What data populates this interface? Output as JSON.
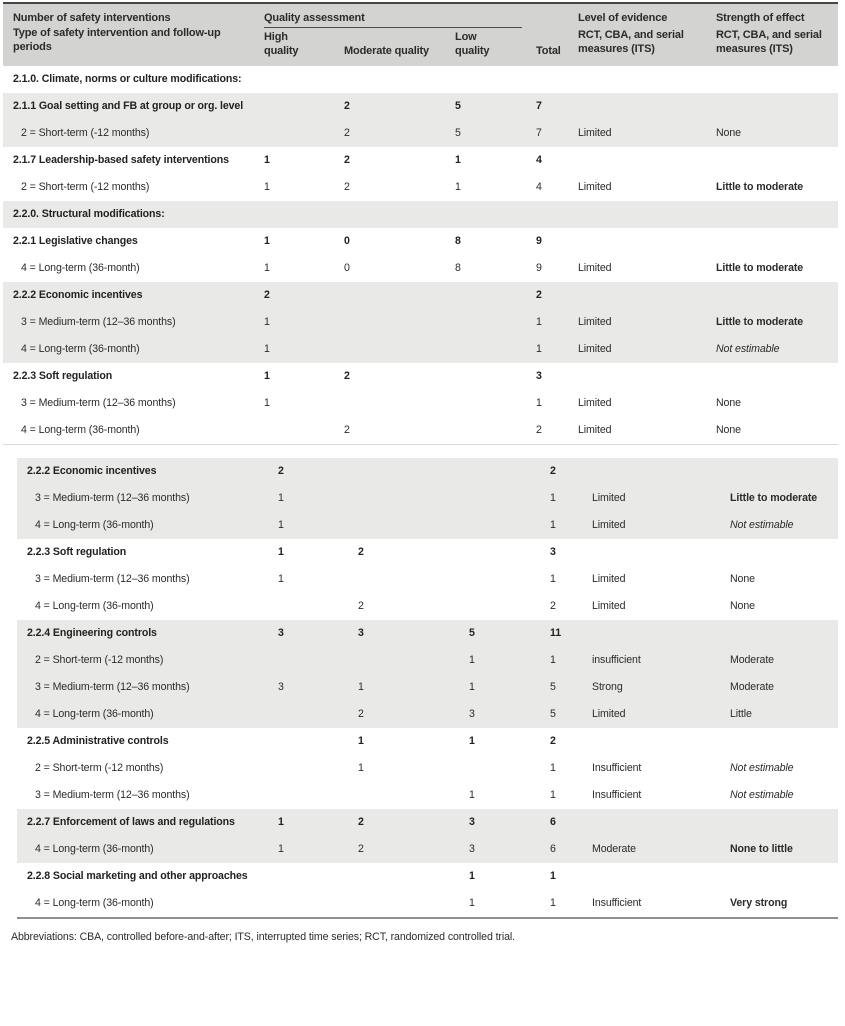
{
  "colors": {
    "header_bg": "#d3d3d2",
    "row_shade": "#e9e9e8",
    "top_rule": "#474747",
    "panel_divider": "#d8d8d8",
    "bottom_rule": "#8f8f8f",
    "text": "#2b2b2b"
  },
  "table": {
    "header": {
      "col1_line1": "Number of safety interventions",
      "col1_line2": "Type of safety intervention and follow-up periods",
      "quality_group": "Quality assessment",
      "high": "High quality",
      "moderate": "Moderate quality",
      "low": "Low quality",
      "total": "Total",
      "evidence_line1": "Level of evidence",
      "evidence_line2": "RCT, CBA, and serial measures (ITS)",
      "effect_line1": "Strength of effect",
      "effect_line2": "RCT, CBA, and serial measures (ITS)"
    },
    "panels": [
      {
        "rows": [
          {
            "label": "2.1.0. Climate, norms or culture modifications:",
            "level": "parent",
            "shaded": false,
            "high": "",
            "moderate": "",
            "low": "",
            "total": "",
            "evidence": "",
            "effect": "",
            "effect_style": "normal"
          },
          {
            "label": "2.1.1 Goal setting and FB at group or org. level",
            "level": "parent",
            "shaded": true,
            "high": "",
            "moderate": "2",
            "low": "5",
            "total": "7",
            "evidence": "",
            "effect": "",
            "effect_style": "normal"
          },
          {
            "label": "2 = Short-term (-12 months)",
            "level": "sub",
            "shaded": true,
            "high": "",
            "moderate": "2",
            "low": "5",
            "total": "7",
            "evidence": "Limited",
            "effect": "None",
            "effect_style": "normal"
          },
          {
            "label": "2.1.7 Leadership-based safety interventions",
            "level": "parent",
            "shaded": false,
            "high": "1",
            "moderate": "2",
            "low": "1",
            "total": "4",
            "evidence": "",
            "effect": "",
            "effect_style": "normal"
          },
          {
            "label": "2 = Short-term (-12 months)",
            "level": "sub",
            "shaded": false,
            "high": "1",
            "moderate": "2",
            "low": "1",
            "total": "4",
            "evidence": "Limited",
            "effect": "Little to moderate",
            "effect_style": "bold"
          },
          {
            "label": "2.2.0. Structural modifications:",
            "level": "parent",
            "shaded": true,
            "high": "",
            "moderate": "",
            "low": "",
            "total": "",
            "evidence": "",
            "effect": "",
            "effect_style": "normal"
          },
          {
            "label": "2.2.1 Legislative changes",
            "level": "parent",
            "shaded": false,
            "high": "1",
            "moderate": "0",
            "low": "8",
            "total": "9",
            "evidence": "",
            "effect": "",
            "effect_style": "normal"
          },
          {
            "label": "4 = Long-term (36-month)",
            "level": "sub",
            "shaded": false,
            "high": "1",
            "moderate": "0",
            "low": "8",
            "total": "9",
            "evidence": "Limited",
            "effect": "Little to moderate",
            "effect_style": "bold"
          },
          {
            "label": "2.2.2 Economic incentives",
            "level": "parent",
            "shaded": true,
            "high": "2",
            "moderate": "",
            "low": "",
            "total": "2",
            "evidence": "",
            "effect": "",
            "effect_style": "normal"
          },
          {
            "label": "3 = Medium-term (12–36 months)",
            "level": "sub",
            "shaded": true,
            "high": "1",
            "moderate": "",
            "low": "",
            "total": "1",
            "evidence": "Limited",
            "effect": "Little to moderate",
            "effect_style": "bold"
          },
          {
            "label": "4 = Long-term (36-month)",
            "level": "sub",
            "shaded": true,
            "high": "1",
            "moderate": "",
            "low": "",
            "total": "1",
            "evidence": "Limited",
            "effect": "Not estimable",
            "effect_style": "italic"
          },
          {
            "label": "2.2.3 Soft regulation",
            "level": "parent",
            "shaded": false,
            "high": "1",
            "moderate": "2",
            "low": "",
            "total": "3",
            "evidence": "",
            "effect": "",
            "effect_style": "normal"
          },
          {
            "label": "3 = Medium-term (12–36 months)",
            "level": "sub",
            "shaded": false,
            "high": "1",
            "moderate": "",
            "low": "",
            "total": "1",
            "evidence": "Limited",
            "effect": "None",
            "effect_style": "normal"
          },
          {
            "label": "4 = Long-term (36-month)",
            "level": "sub",
            "shaded": false,
            "high": "",
            "moderate": "2",
            "low": "",
            "total": "2",
            "evidence": "Limited",
            "effect": "None",
            "effect_style": "normal"
          }
        ]
      },
      {
        "rows": [
          {
            "label": "2.2.2 Economic incentives",
            "level": "parent",
            "shaded": true,
            "high": "2",
            "moderate": "",
            "low": "",
            "total": "2",
            "evidence": "",
            "effect": "",
            "effect_style": "normal"
          },
          {
            "label": "3 = Medium-term (12–36 months)",
            "level": "sub",
            "shaded": true,
            "high": "1",
            "moderate": "",
            "low": "",
            "total": "1",
            "evidence": "Limited",
            "effect": "Little to moderate",
            "effect_style": "bold"
          },
          {
            "label": "4 = Long-term (36-month)",
            "level": "sub",
            "shaded": true,
            "high": "1",
            "moderate": "",
            "low": "",
            "total": "1",
            "evidence": "Limited",
            "effect": "Not estimable",
            "effect_style": "italic"
          },
          {
            "label": "2.2.3 Soft regulation",
            "level": "parent",
            "shaded": false,
            "high": "1",
            "moderate": "2",
            "low": "",
            "total": "3",
            "evidence": "",
            "effect": "",
            "effect_style": "normal"
          },
          {
            "label": "3 = Medium-term (12–36 months)",
            "level": "sub",
            "shaded": false,
            "high": "1",
            "moderate": "",
            "low": "",
            "total": "1",
            "evidence": "Limited",
            "effect": "None",
            "effect_style": "normal"
          },
          {
            "label": "4 = Long-term (36-month)",
            "level": "sub",
            "shaded": false,
            "high": "",
            "moderate": "2",
            "low": "",
            "total": "2",
            "evidence": "Limited",
            "effect": "None",
            "effect_style": "normal"
          },
          {
            "label": "2.2.4 Engineering controls",
            "level": "parent",
            "shaded": true,
            "high": "3",
            "moderate": "3",
            "low": "5",
            "total": "11",
            "evidence": "",
            "effect": "",
            "effect_style": "normal"
          },
          {
            "label": "2 = Short-term (-12 months)",
            "level": "sub",
            "shaded": true,
            "high": "",
            "moderate": "",
            "low": "1",
            "total": "1",
            "evidence": "insufficient",
            "effect": "Moderate",
            "effect_style": "normal"
          },
          {
            "label": "3 = Medium-term (12–36 months)",
            "level": "sub",
            "shaded": true,
            "high": "3",
            "moderate": "1",
            "low": "1",
            "total": "5",
            "evidence": "Strong",
            "effect": "Moderate",
            "effect_style": "normal"
          },
          {
            "label": "4 = Long-term (36-month)",
            "level": "sub",
            "shaded": true,
            "high": "",
            "moderate": "2",
            "low": "3",
            "total": "5",
            "evidence": "Limited",
            "effect": "Little",
            "effect_style": "normal"
          },
          {
            "label": "2.2.5 Administrative controls",
            "level": "parent",
            "shaded": false,
            "high": "",
            "moderate": "1",
            "low": "1",
            "total": "2",
            "evidence": "",
            "effect": "",
            "effect_style": "normal"
          },
          {
            "label": "2 = Short-term (-12 months)",
            "level": "sub",
            "shaded": false,
            "high": "",
            "moderate": "1",
            "low": "",
            "total": "1",
            "evidence": "Insufficient",
            "effect": "Not estimable",
            "effect_style": "italic"
          },
          {
            "label": "3 = Medium-term (12–36 months)",
            "level": "sub",
            "shaded": false,
            "high": "",
            "moderate": "",
            "low": "1",
            "total": "1",
            "evidence": "Insufficient",
            "effect": "Not estimable",
            "effect_style": "italic"
          },
          {
            "label": "2.2.7 Enforcement of laws and regulations",
            "level": "parent",
            "shaded": true,
            "high": "1",
            "moderate": "2",
            "low": "3",
            "total": "6",
            "evidence": "",
            "effect": "",
            "effect_style": "normal"
          },
          {
            "label": "4 = Long-term (36-month)",
            "level": "sub",
            "shaded": true,
            "high": "1",
            "moderate": "2",
            "low": "3",
            "total": "6",
            "evidence": "Moderate",
            "effect": "None to little",
            "effect_style": "bold"
          },
          {
            "label": "2.2.8 Social marketing and other approaches",
            "level": "parent",
            "shaded": false,
            "high": "",
            "moderate": "",
            "low": "1",
            "total": "1",
            "evidence": "",
            "effect": "",
            "effect_style": "normal"
          },
          {
            "label": "4 = Long-term (36-month)",
            "level": "sub",
            "shaded": false,
            "high": "",
            "moderate": "",
            "low": "1",
            "total": "1",
            "evidence": "Insufficient",
            "effect": "Very strong",
            "effect_style": "bold"
          }
        ]
      }
    ],
    "footnote": "Abbreviations: CBA, controlled before-and-after; ITS, interrupted time series; RCT, randomized controlled trial."
  }
}
